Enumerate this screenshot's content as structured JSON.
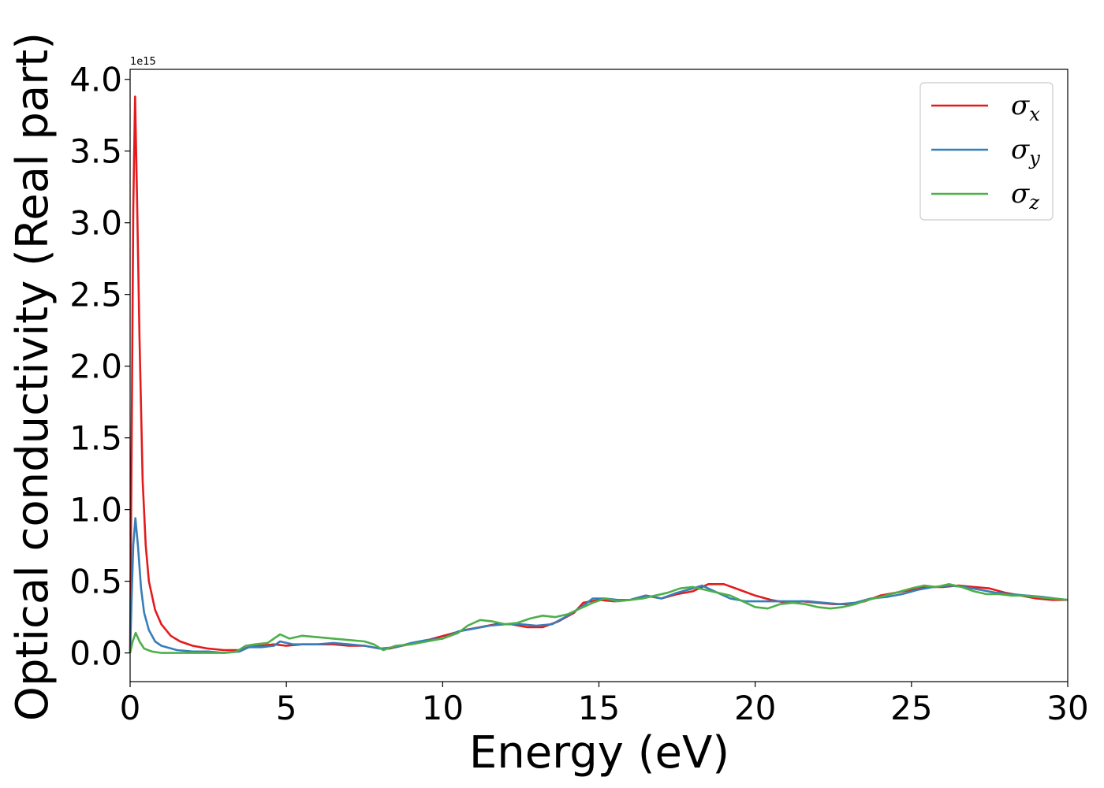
{
  "chart_data": {
    "type": "line",
    "title": "",
    "xlabel": "Energy (eV)",
    "ylabel": "Optical conductivity (Real part)",
    "y_offset_text": "1e15",
    "xlim": [
      0,
      30
    ],
    "ylim": [
      -0.2,
      4.07
    ],
    "x_ticks": [
      "0",
      "5",
      "10",
      "15",
      "20",
      "25",
      "30"
    ],
    "y_ticks": [
      "0.0",
      "0.5",
      "1.0",
      "1.5",
      "2.0",
      "2.5",
      "3.0",
      "3.5",
      "4.0"
    ],
    "grid": false,
    "legend_position": "top-right",
    "series": [
      {
        "name": "σx",
        "legend_symbol": "σ",
        "legend_sub": "x",
        "color": "#e41a1c",
        "points": [
          [
            0,
            0.0
          ],
          [
            0.05,
            1.5
          ],
          [
            0.1,
            3.1
          ],
          [
            0.16,
            3.88
          ],
          [
            0.22,
            3.2
          ],
          [
            0.3,
            2.2
          ],
          [
            0.4,
            1.2
          ],
          [
            0.5,
            0.75
          ],
          [
            0.6,
            0.5
          ],
          [
            0.8,
            0.3
          ],
          [
            1.0,
            0.2
          ],
          [
            1.3,
            0.12
          ],
          [
            1.6,
            0.08
          ],
          [
            2.0,
            0.05
          ],
          [
            2.5,
            0.03
          ],
          [
            3.0,
            0.02
          ],
          [
            3.5,
            0.02
          ],
          [
            3.8,
            0.04
          ],
          [
            4.2,
            0.05
          ],
          [
            4.6,
            0.06
          ],
          [
            5.0,
            0.05
          ],
          [
            5.5,
            0.06
          ],
          [
            6.0,
            0.06
          ],
          [
            6.5,
            0.06
          ],
          [
            7.0,
            0.05
          ],
          [
            7.5,
            0.05
          ],
          [
            8.0,
            0.03
          ],
          [
            8.3,
            0.03
          ],
          [
            8.7,
            0.05
          ],
          [
            9.2,
            0.07
          ],
          [
            9.7,
            0.1
          ],
          [
            10.2,
            0.13
          ],
          [
            10.7,
            0.16
          ],
          [
            11.2,
            0.18
          ],
          [
            11.7,
            0.2
          ],
          [
            12.2,
            0.2
          ],
          [
            12.7,
            0.18
          ],
          [
            13.2,
            0.18
          ],
          [
            13.7,
            0.22
          ],
          [
            14.2,
            0.28
          ],
          [
            14.5,
            0.35
          ],
          [
            15.0,
            0.37
          ],
          [
            15.5,
            0.36
          ],
          [
            16.0,
            0.37
          ],
          [
            16.5,
            0.4
          ],
          [
            17.0,
            0.38
          ],
          [
            17.5,
            0.41
          ],
          [
            18.0,
            0.43
          ],
          [
            18.5,
            0.48
          ],
          [
            19.0,
            0.48
          ],
          [
            19.5,
            0.44
          ],
          [
            20.0,
            0.4
          ],
          [
            20.5,
            0.37
          ],
          [
            21.0,
            0.35
          ],
          [
            21.5,
            0.36
          ],
          [
            22.0,
            0.35
          ],
          [
            22.5,
            0.34
          ],
          [
            23.0,
            0.34
          ],
          [
            23.5,
            0.36
          ],
          [
            24.0,
            0.4
          ],
          [
            24.5,
            0.42
          ],
          [
            25.0,
            0.44
          ],
          [
            25.5,
            0.46
          ],
          [
            26.0,
            0.46
          ],
          [
            26.5,
            0.47
          ],
          [
            27.0,
            0.46
          ],
          [
            27.5,
            0.45
          ],
          [
            28.0,
            0.42
          ],
          [
            28.5,
            0.4
          ],
          [
            29.0,
            0.38
          ],
          [
            29.5,
            0.37
          ],
          [
            30.0,
            0.37
          ]
        ]
      },
      {
        "name": "σy",
        "legend_symbol": "σ",
        "legend_sub": "y",
        "color": "#377eb8",
        "points": [
          [
            0,
            0.0
          ],
          [
            0.05,
            0.4
          ],
          [
            0.1,
            0.75
          ],
          [
            0.17,
            0.94
          ],
          [
            0.25,
            0.75
          ],
          [
            0.35,
            0.45
          ],
          [
            0.45,
            0.28
          ],
          [
            0.6,
            0.16
          ],
          [
            0.8,
            0.08
          ],
          [
            1.0,
            0.05
          ],
          [
            1.5,
            0.02
          ],
          [
            2.0,
            0.01
          ],
          [
            2.5,
            0.01
          ],
          [
            3.0,
            0.0
          ],
          [
            3.5,
            0.01
          ],
          [
            3.8,
            0.04
          ],
          [
            4.2,
            0.04
          ],
          [
            4.6,
            0.05
          ],
          [
            4.8,
            0.08
          ],
          [
            5.2,
            0.06
          ],
          [
            5.6,
            0.06
          ],
          [
            6.0,
            0.06
          ],
          [
            6.5,
            0.07
          ],
          [
            7.0,
            0.06
          ],
          [
            7.5,
            0.05
          ],
          [
            8.0,
            0.03
          ],
          [
            8.5,
            0.04
          ],
          [
            9.0,
            0.07
          ],
          [
            9.5,
            0.09
          ],
          [
            10.0,
            0.1
          ],
          [
            10.5,
            0.15
          ],
          [
            11.0,
            0.17
          ],
          [
            11.5,
            0.19
          ],
          [
            12.0,
            0.2
          ],
          [
            12.5,
            0.2
          ],
          [
            13.0,
            0.19
          ],
          [
            13.5,
            0.2
          ],
          [
            14.0,
            0.26
          ],
          [
            14.5,
            0.33
          ],
          [
            14.8,
            0.38
          ],
          [
            15.2,
            0.38
          ],
          [
            15.6,
            0.37
          ],
          [
            16.0,
            0.37
          ],
          [
            16.5,
            0.4
          ],
          [
            17.0,
            0.38
          ],
          [
            17.5,
            0.42
          ],
          [
            18.0,
            0.45
          ],
          [
            18.3,
            0.47
          ],
          [
            18.7,
            0.43
          ],
          [
            19.2,
            0.38
          ],
          [
            19.7,
            0.36
          ],
          [
            20.2,
            0.36
          ],
          [
            20.7,
            0.36
          ],
          [
            21.2,
            0.36
          ],
          [
            21.7,
            0.36
          ],
          [
            22.2,
            0.35
          ],
          [
            22.7,
            0.34
          ],
          [
            23.2,
            0.35
          ],
          [
            23.7,
            0.38
          ],
          [
            24.2,
            0.39
          ],
          [
            24.7,
            0.41
          ],
          [
            25.2,
            0.44
          ],
          [
            25.7,
            0.46
          ],
          [
            26.2,
            0.47
          ],
          [
            26.7,
            0.46
          ],
          [
            27.2,
            0.44
          ],
          [
            27.7,
            0.42
          ],
          [
            28.2,
            0.41
          ],
          [
            28.7,
            0.4
          ],
          [
            29.2,
            0.39
          ],
          [
            29.6,
            0.38
          ],
          [
            30.0,
            0.37
          ]
        ]
      },
      {
        "name": "σz",
        "legend_symbol": "σ",
        "legend_sub": "z",
        "color": "#4daf4a",
        "points": [
          [
            0,
            0.0
          ],
          [
            0.08,
            0.08
          ],
          [
            0.18,
            0.14
          ],
          [
            0.3,
            0.08
          ],
          [
            0.45,
            0.03
          ],
          [
            0.7,
            0.01
          ],
          [
            1.0,
            0.0
          ],
          [
            1.5,
            0.0
          ],
          [
            2.0,
            0.0
          ],
          [
            2.5,
            0.0
          ],
          [
            3.0,
            0.0
          ],
          [
            3.4,
            0.01
          ],
          [
            3.7,
            0.05
          ],
          [
            4.0,
            0.06
          ],
          [
            4.4,
            0.07
          ],
          [
            4.8,
            0.13
          ],
          [
            5.1,
            0.1
          ],
          [
            5.5,
            0.12
          ],
          [
            6.0,
            0.11
          ],
          [
            6.5,
            0.1
          ],
          [
            7.0,
            0.09
          ],
          [
            7.5,
            0.08
          ],
          [
            7.8,
            0.06
          ],
          [
            8.1,
            0.02
          ],
          [
            8.5,
            0.05
          ],
          [
            9.0,
            0.06
          ],
          [
            9.5,
            0.08
          ],
          [
            10.0,
            0.1
          ],
          [
            10.5,
            0.14
          ],
          [
            10.8,
            0.19
          ],
          [
            11.2,
            0.23
          ],
          [
            11.6,
            0.22
          ],
          [
            12.0,
            0.2
          ],
          [
            12.4,
            0.21
          ],
          [
            12.8,
            0.24
          ],
          [
            13.2,
            0.26
          ],
          [
            13.6,
            0.25
          ],
          [
            14.0,
            0.27
          ],
          [
            14.4,
            0.31
          ],
          [
            14.8,
            0.35
          ],
          [
            15.2,
            0.38
          ],
          [
            15.6,
            0.36
          ],
          [
            16.0,
            0.37
          ],
          [
            16.4,
            0.38
          ],
          [
            16.8,
            0.4
          ],
          [
            17.2,
            0.42
          ],
          [
            17.6,
            0.45
          ],
          [
            18.0,
            0.46
          ],
          [
            18.4,
            0.44
          ],
          [
            18.8,
            0.42
          ],
          [
            19.2,
            0.4
          ],
          [
            19.6,
            0.36
          ],
          [
            20.0,
            0.32
          ],
          [
            20.4,
            0.31
          ],
          [
            20.8,
            0.34
          ],
          [
            21.2,
            0.35
          ],
          [
            21.6,
            0.34
          ],
          [
            22.0,
            0.32
          ],
          [
            22.4,
            0.31
          ],
          [
            22.8,
            0.32
          ],
          [
            23.2,
            0.34
          ],
          [
            23.6,
            0.37
          ],
          [
            24.0,
            0.39
          ],
          [
            24.5,
            0.42
          ],
          [
            25.0,
            0.45
          ],
          [
            25.4,
            0.47
          ],
          [
            25.8,
            0.46
          ],
          [
            26.2,
            0.48
          ],
          [
            26.6,
            0.46
          ],
          [
            27.0,
            0.43
          ],
          [
            27.4,
            0.41
          ],
          [
            27.8,
            0.41
          ],
          [
            28.2,
            0.4
          ],
          [
            28.6,
            0.4
          ],
          [
            29.0,
            0.39
          ],
          [
            29.5,
            0.38
          ],
          [
            30.0,
            0.37
          ]
        ]
      }
    ]
  }
}
